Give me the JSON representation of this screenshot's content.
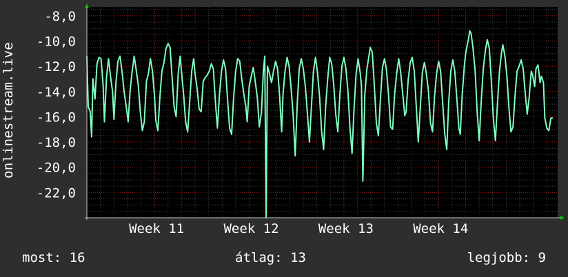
{
  "chart_data": {
    "type": "line",
    "ylabel": "onlinestream.live",
    "ylim": [
      -24.0,
      -7.3
    ],
    "yticks": [
      -8.0,
      -10.0,
      -12.0,
      -14.0,
      -16.0,
      -18.0,
      -20.0,
      -22.0
    ],
    "ytick_labels": [
      "-8,0",
      "-10,0",
      "-12,0",
      "-14,0",
      "-16,0",
      "-18,0",
      "-20,0",
      "-22,0"
    ],
    "xlim": [
      0,
      34.8
    ],
    "xticks": [
      5,
      12,
      19,
      26
    ],
    "xtick_labels": [
      "Week 11",
      "Week 12",
      "Week 13",
      "Week 14"
    ],
    "grid": true,
    "colors": {
      "background": "#2e2e2e",
      "plot_background": "#000000",
      "grid_major": "#8a1c1c",
      "grid_minor": "#3a3a3a",
      "series": "#7fffbf",
      "axis_arrow": "#00cc00"
    },
    "series": [
      {
        "values": [
          [
            0.0,
            -11.2
          ],
          [
            0.1,
            -15.2
          ],
          [
            0.25,
            -15.6
          ],
          [
            0.35,
            -17.6
          ],
          [
            0.45,
            -13.0
          ],
          [
            0.6,
            -14.6
          ],
          [
            0.75,
            -11.8
          ],
          [
            0.9,
            -11.3
          ],
          [
            1.05,
            -11.4
          ],
          [
            1.2,
            -13.5
          ],
          [
            1.3,
            -16.4
          ],
          [
            1.45,
            -12.9
          ],
          [
            1.6,
            -11.4
          ],
          [
            1.75,
            -12.8
          ],
          [
            1.9,
            -14.0
          ],
          [
            2.0,
            -16.2
          ],
          [
            2.15,
            -13.3
          ],
          [
            2.3,
            -11.6
          ],
          [
            2.45,
            -11.2
          ],
          [
            2.6,
            -12.4
          ],
          [
            2.75,
            -14.0
          ],
          [
            2.9,
            -15.1
          ],
          [
            3.05,
            -16.4
          ],
          [
            3.2,
            -13.9
          ],
          [
            3.35,
            -12.4
          ],
          [
            3.5,
            -11.2
          ],
          [
            3.65,
            -12.3
          ],
          [
            3.8,
            -13.5
          ],
          [
            3.95,
            -15.6
          ],
          [
            4.1,
            -17.1
          ],
          [
            4.25,
            -16.4
          ],
          [
            4.4,
            -13.2
          ],
          [
            4.55,
            -12.6
          ],
          [
            4.7,
            -11.4
          ],
          [
            4.85,
            -12.4
          ],
          [
            5.0,
            -14.3
          ],
          [
            5.1,
            -16.3
          ],
          [
            5.25,
            -17.1
          ],
          [
            5.4,
            -14.4
          ],
          [
            5.55,
            -12.4
          ],
          [
            5.7,
            -11.7
          ],
          [
            5.85,
            -10.6
          ],
          [
            6.0,
            -10.2
          ],
          [
            6.15,
            -10.5
          ],
          [
            6.3,
            -12.8
          ],
          [
            6.45,
            -15.2
          ],
          [
            6.6,
            -16.0
          ],
          [
            6.75,
            -12.6
          ],
          [
            6.9,
            -11.2
          ],
          [
            7.0,
            -12.5
          ],
          [
            7.15,
            -14.2
          ],
          [
            7.3,
            -16.4
          ],
          [
            7.45,
            -17.2
          ],
          [
            7.6,
            -14.8
          ],
          [
            7.75,
            -12.4
          ],
          [
            7.9,
            -11.4
          ],
          [
            8.0,
            -12.6
          ],
          [
            8.15,
            -13.8
          ],
          [
            8.3,
            -15.4
          ],
          [
            8.45,
            -15.6
          ],
          [
            8.6,
            -13.2
          ],
          [
            8.75,
            -12.9
          ],
          [
            8.9,
            -12.7
          ],
          [
            9.05,
            -12.4
          ],
          [
            9.2,
            -11.8
          ],
          [
            9.35,
            -12.2
          ],
          [
            9.5,
            -14.8
          ],
          [
            9.65,
            -16.9
          ],
          [
            9.8,
            -14.3
          ],
          [
            9.95,
            -12.4
          ],
          [
            10.1,
            -11.5
          ],
          [
            10.25,
            -12.2
          ],
          [
            10.4,
            -14.6
          ],
          [
            10.55,
            -16.9
          ],
          [
            10.7,
            -17.4
          ],
          [
            10.85,
            -14.5
          ],
          [
            11.0,
            -12.4
          ],
          [
            11.15,
            -11.4
          ],
          [
            11.3,
            -11.6
          ],
          [
            11.45,
            -13.0
          ],
          [
            11.6,
            -14.2
          ],
          [
            11.75,
            -15.2
          ],
          [
            11.85,
            -16.4
          ],
          [
            12.0,
            -13.6
          ],
          [
            12.15,
            -12.8
          ],
          [
            12.3,
            -12.1
          ],
          [
            12.45,
            -13.2
          ],
          [
            12.6,
            -14.5
          ],
          [
            12.75,
            -16.8
          ],
          [
            12.9,
            -15.7
          ],
          [
            13.05,
            -12.4
          ],
          [
            13.15,
            -11.2
          ],
          [
            13.25,
            -24.2
          ],
          [
            13.35,
            -12.0
          ],
          [
            13.5,
            -12.6
          ],
          [
            13.65,
            -13.3
          ],
          [
            13.8,
            -12.4
          ],
          [
            13.95,
            -11.6
          ],
          [
            14.1,
            -12.2
          ],
          [
            14.25,
            -14.4
          ],
          [
            14.4,
            -17.2
          ],
          [
            14.5,
            -14.2
          ],
          [
            14.65,
            -12.4
          ],
          [
            14.8,
            -11.3
          ],
          [
            14.95,
            -12.0
          ],
          [
            15.1,
            -13.8
          ],
          [
            15.25,
            -15.9
          ],
          [
            15.4,
            -19.1
          ],
          [
            15.55,
            -15.0
          ],
          [
            15.7,
            -12.2
          ],
          [
            15.85,
            -11.4
          ],
          [
            16.0,
            -12.2
          ],
          [
            16.15,
            -13.6
          ],
          [
            16.3,
            -15.7
          ],
          [
            16.45,
            -18.0
          ],
          [
            16.6,
            -15.2
          ],
          [
            16.75,
            -12.4
          ],
          [
            16.9,
            -11.3
          ],
          [
            17.05,
            -12.5
          ],
          [
            17.2,
            -14.4
          ],
          [
            17.35,
            -17.1
          ],
          [
            17.5,
            -18.6
          ],
          [
            17.65,
            -15.2
          ],
          [
            17.8,
            -13.0
          ],
          [
            17.95,
            -11.3
          ],
          [
            18.1,
            -11.8
          ],
          [
            18.25,
            -13.5
          ],
          [
            18.4,
            -15.8
          ],
          [
            18.55,
            -17.2
          ],
          [
            18.7,
            -14.3
          ],
          [
            18.85,
            -12.0
          ],
          [
            19.0,
            -11.3
          ],
          [
            19.15,
            -12.2
          ],
          [
            19.3,
            -14.0
          ],
          [
            19.45,
            -16.9
          ],
          [
            19.6,
            -18.9
          ],
          [
            19.75,
            -15.4
          ],
          [
            19.9,
            -12.6
          ],
          [
            20.05,
            -11.4
          ],
          [
            20.2,
            -12.5
          ],
          [
            20.3,
            -13.6
          ],
          [
            20.4,
            -21.1
          ],
          [
            20.55,
            -14.2
          ],
          [
            20.7,
            -12.2
          ],
          [
            20.85,
            -11.2
          ],
          [
            20.95,
            -10.5
          ],
          [
            21.1,
            -10.9
          ],
          [
            21.25,
            -13.6
          ],
          [
            21.4,
            -16.5
          ],
          [
            21.55,
            -17.5
          ],
          [
            21.7,
            -14.6
          ],
          [
            21.85,
            -12.1
          ],
          [
            22.0,
            -11.4
          ],
          [
            22.15,
            -12.3
          ],
          [
            22.3,
            -14.3
          ],
          [
            22.45,
            -16.8
          ],
          [
            22.6,
            -17.0
          ],
          [
            22.75,
            -14.2
          ],
          [
            22.9,
            -12.6
          ],
          [
            23.05,
            -11.4
          ],
          [
            23.2,
            -12.5
          ],
          [
            23.35,
            -14.2
          ],
          [
            23.5,
            -15.9
          ],
          [
            23.6,
            -15.6
          ],
          [
            23.75,
            -13.1
          ],
          [
            23.9,
            -11.7
          ],
          [
            24.05,
            -11.3
          ],
          [
            24.2,
            -12.4
          ],
          [
            24.35,
            -15.2
          ],
          [
            24.5,
            -18.0
          ],
          [
            24.65,
            -15.2
          ],
          [
            24.8,
            -12.5
          ],
          [
            24.95,
            -11.7
          ],
          [
            25.1,
            -12.6
          ],
          [
            25.25,
            -14.0
          ],
          [
            25.4,
            -16.5
          ],
          [
            25.55,
            -17.2
          ],
          [
            25.7,
            -14.4
          ],
          [
            25.85,
            -12.6
          ],
          [
            26.0,
            -11.6
          ],
          [
            26.15,
            -12.4
          ],
          [
            26.3,
            -14.9
          ],
          [
            26.45,
            -17.3
          ],
          [
            26.6,
            -18.6
          ],
          [
            26.75,
            -14.8
          ],
          [
            26.9,
            -12.4
          ],
          [
            27.05,
            -11.5
          ],
          [
            27.2,
            -12.4
          ],
          [
            27.35,
            -14.6
          ],
          [
            27.5,
            -16.9
          ],
          [
            27.6,
            -17.4
          ],
          [
            27.75,
            -14.2
          ],
          [
            27.9,
            -12.0
          ],
          [
            28.0,
            -11.0
          ],
          [
            28.1,
            -10.4
          ],
          [
            28.2,
            -9.9
          ],
          [
            28.3,
            -9.2
          ],
          [
            28.4,
            -9.4
          ],
          [
            28.55,
            -10.6
          ],
          [
            28.7,
            -12.4
          ],
          [
            28.85,
            -15.6
          ],
          [
            29.0,
            -17.9
          ],
          [
            29.15,
            -14.8
          ],
          [
            29.3,
            -12.2
          ],
          [
            29.45,
            -10.8
          ],
          [
            29.6,
            -9.9
          ],
          [
            29.75,
            -10.6
          ],
          [
            29.9,
            -13.2
          ],
          [
            30.05,
            -16.2
          ],
          [
            30.2,
            -17.9
          ],
          [
            30.35,
            -14.9
          ],
          [
            30.5,
            -12.4
          ],
          [
            30.65,
            -10.9
          ],
          [
            30.75,
            -10.3
          ],
          [
            30.9,
            -11.2
          ],
          [
            31.05,
            -12.8
          ],
          [
            31.2,
            -15.3
          ],
          [
            31.35,
            -17.2
          ],
          [
            31.5,
            -16.8
          ],
          [
            31.65,
            -14.3
          ],
          [
            31.8,
            -12.4
          ],
          [
            31.95,
            -12.0
          ],
          [
            32.1,
            -11.5
          ],
          [
            32.25,
            -12.2
          ],
          [
            32.4,
            -14.1
          ],
          [
            32.55,
            -15.8
          ],
          [
            32.7,
            -14.4
          ],
          [
            32.85,
            -12.4
          ],
          [
            32.95,
            -12.7
          ],
          [
            33.1,
            -13.6
          ],
          [
            33.2,
            -12.2
          ],
          [
            33.35,
            -11.9
          ],
          [
            33.5,
            -13.3
          ],
          [
            33.6,
            -12.8
          ],
          [
            33.75,
            -13.3
          ],
          [
            33.85,
            -16.1
          ],
          [
            34.0,
            -16.9
          ],
          [
            34.15,
            -17.1
          ],
          [
            34.3,
            -16.1
          ],
          [
            34.45,
            -16.1
          ]
        ]
      }
    ]
  },
  "footer": {
    "now": "most: 16",
    "avg": "átlag: 13",
    "best": "legjobb: 9"
  }
}
